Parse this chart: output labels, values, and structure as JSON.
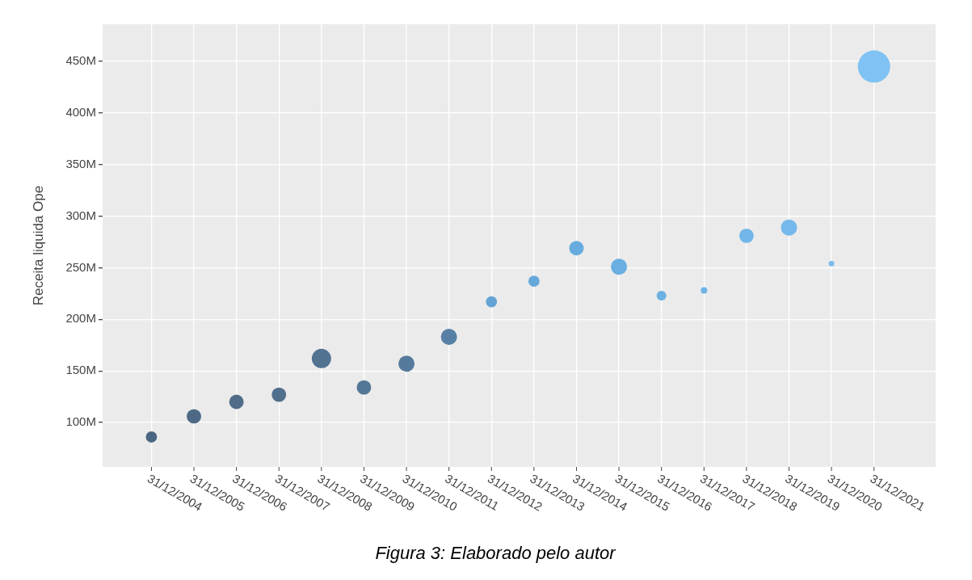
{
  "chart_data": {
    "type": "bubble",
    "ylabel": "Receita liquida Ope",
    "categories": [
      "31/12/2004",
      "31/12/2005",
      "31/12/2006",
      "31/12/2007",
      "31/12/2008",
      "31/12/2009",
      "31/12/2010",
      "31/12/2011",
      "31/12/2012",
      "31/12/2013",
      "31/12/2014",
      "31/12/2015",
      "31/12/2016",
      "31/12/2017",
      "31/12/2018",
      "31/12/2019",
      "31/12/2020",
      "31/12/2021"
    ],
    "values": [
      86,
      106,
      120,
      127,
      162,
      134,
      157,
      183,
      217,
      237,
      269,
      251,
      223,
      228,
      281,
      289,
      254,
      445
    ],
    "sizes": [
      0.12,
      0.2,
      0.2,
      0.2,
      0.36,
      0.2,
      0.25,
      0.25,
      0.12,
      0.12,
      0.2,
      0.25,
      0.09,
      0.04,
      0.2,
      0.25,
      0.03,
      1
    ],
    "colors": [
      "#4b6680",
      "#4d6985",
      "#4f6c89",
      "#506f8d",
      "#527292",
      "#547697",
      "#567a9c",
      "#5880a6",
      "#64a4d4",
      "#66a8da",
      "#68acdf",
      "#6aaee2",
      "#6cb0e4",
      "#6eb2e6",
      "#72b6ea",
      "#75b9ec",
      "#78bcee",
      "#7fc2f3"
    ],
    "ylim": [
      57,
      486
    ],
    "yticks": [
      {
        "value": 100,
        "label": "100M"
      },
      {
        "value": 150,
        "label": "150M"
      },
      {
        "value": 200,
        "label": "200M"
      },
      {
        "value": 250,
        "label": "250M"
      },
      {
        "value": 300,
        "label": "300M"
      },
      {
        "value": 350,
        "label": "350M"
      },
      {
        "value": 400,
        "label": "400M"
      },
      {
        "value": 450,
        "label": "450M"
      }
    ],
    "grid": true,
    "legend": false,
    "annotations": [
      "Figura 3: Elaborado pelo autor"
    ]
  }
}
